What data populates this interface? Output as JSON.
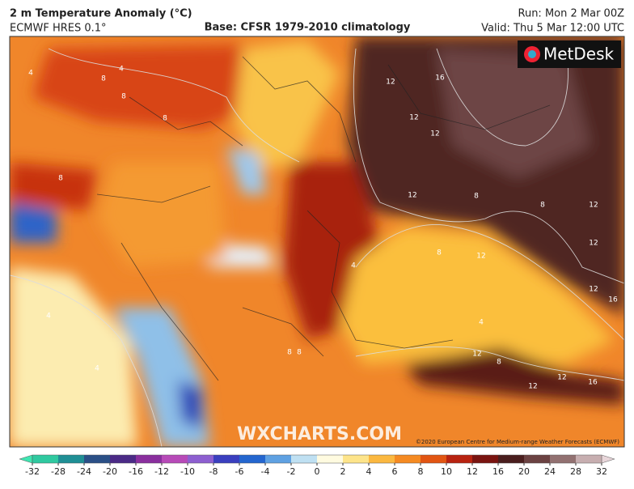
{
  "header": {
    "title": "2 m Temperature Anomaly (°C)",
    "model": "ECMWF HRES 0.1°",
    "base": "Base: CFSR 1979-2010 climatology",
    "run": "Run: Mon 2 Mar 00Z",
    "valid": "Valid: Thu 5 Mar 12:00 UTC"
  },
  "map": {
    "logo": "MetDesk",
    "watermark": "WXCHARTS.COM",
    "copyright": "©2020 European Centre for Medium-range Weather Forecasts (ECMWF)",
    "contour_labels": [
      8,
      4,
      8,
      8,
      8,
      4,
      8,
      4,
      4,
      12,
      16,
      12,
      12,
      12,
      8,
      8,
      12,
      12,
      12,
      12,
      16,
      8,
      12,
      8,
      12,
      12,
      16,
      4,
      8,
      4
    ]
  },
  "colorbar": {
    "ticks": [
      -32,
      -28,
      -24,
      -20,
      -16,
      -12,
      -10,
      -8,
      -6,
      -4,
      -2,
      0,
      2,
      4,
      6,
      8,
      10,
      12,
      16,
      20,
      24,
      28,
      32
    ],
    "colors": [
      "#2fc9a0",
      "#1f8f95",
      "#2a4f86",
      "#4b2a86",
      "#8a2f9e",
      "#b74ab8",
      "#8d5fd0",
      "#3a3fbf",
      "#2466cf",
      "#5fa1e2",
      "#bfe0f2",
      "#fffbe0",
      "#fde48a",
      "#fbb840",
      "#f58a22",
      "#e25512",
      "#b82310",
      "#7a1410",
      "#4a1e1e",
      "#6b4242",
      "#927171",
      "#c7aeb0"
    ],
    "extend_low": "#3fe6b2",
    "extend_high": "#e8d6da"
  }
}
